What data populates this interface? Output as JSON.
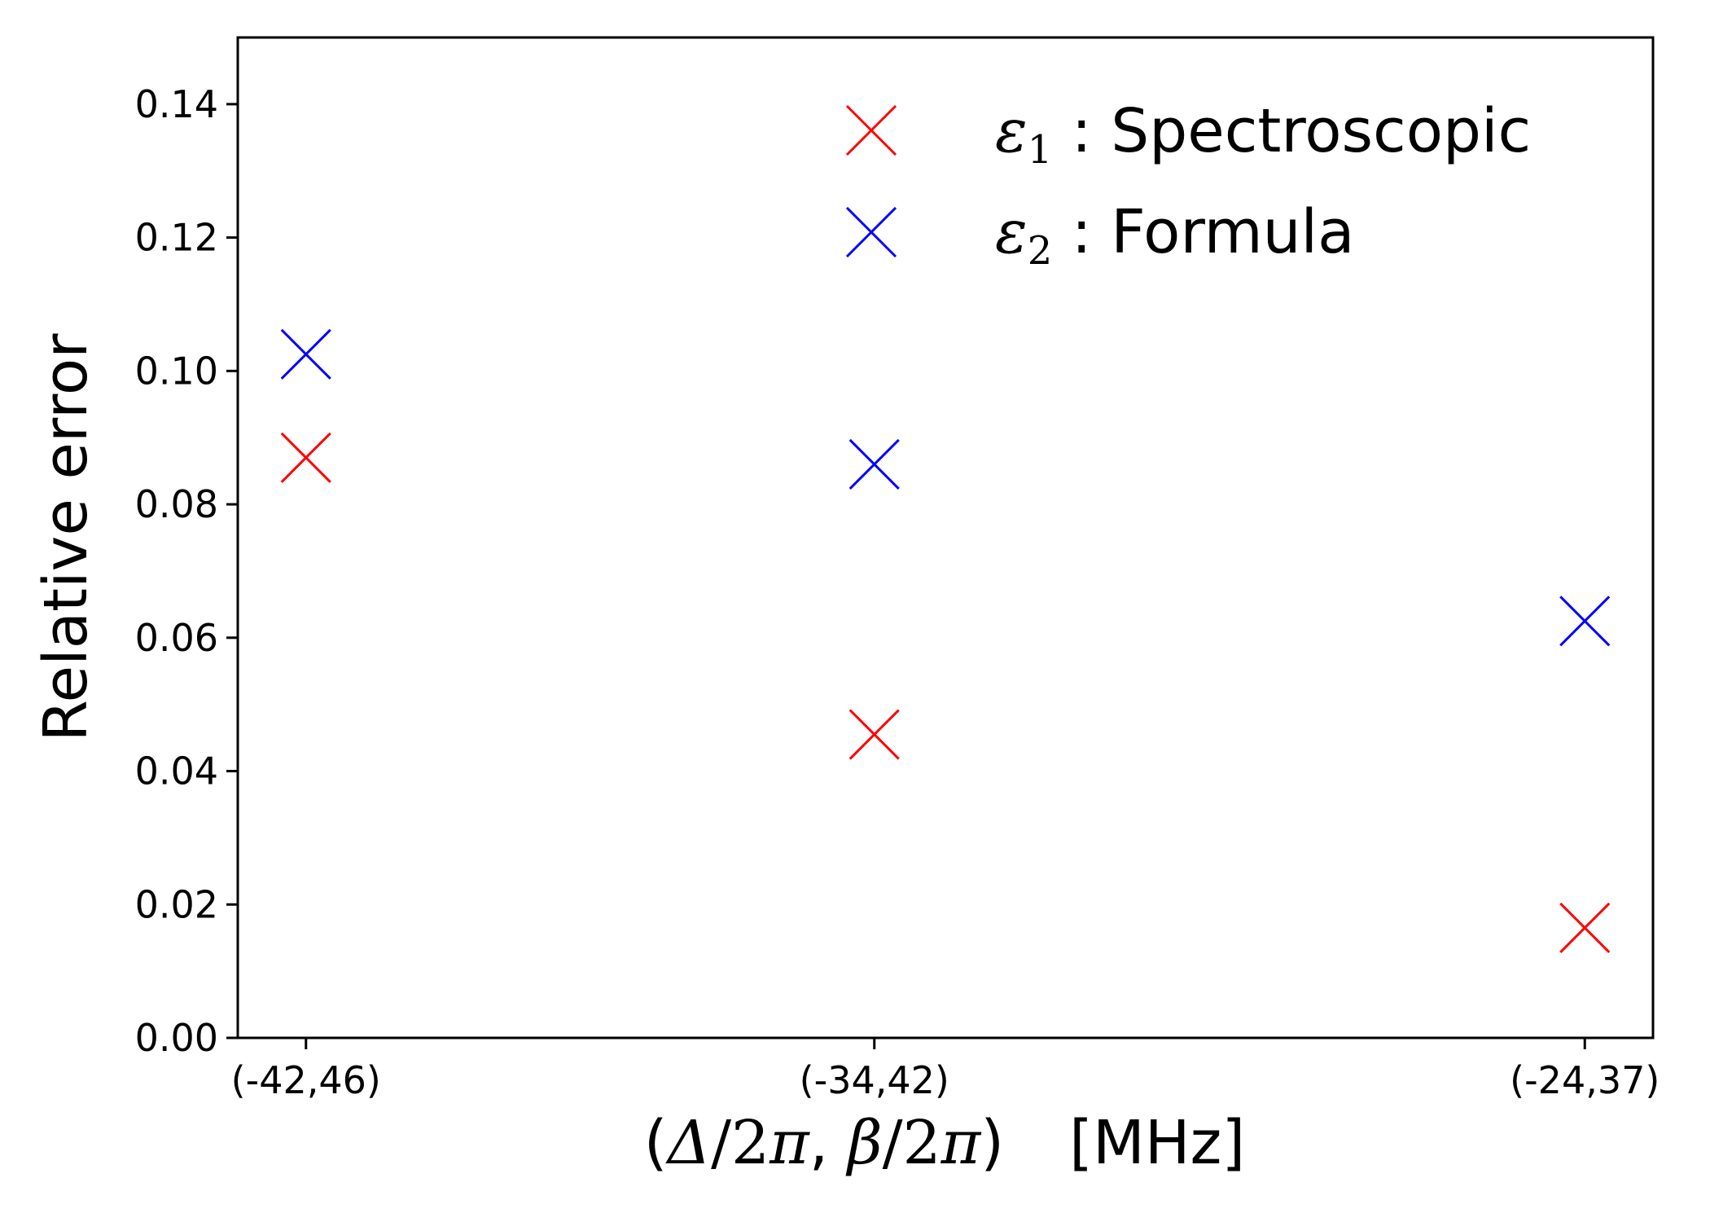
{
  "chart_data": {
    "type": "scatter",
    "title": "",
    "xlabel": {
      "open": "(",
      "delta": "Δ",
      "frac1": "/2",
      "pi1": "π",
      "sep": ", ",
      "beta": "β",
      "frac2": "/2",
      "pi2": "π",
      "close": ")",
      "unit": "[MHz]"
    },
    "ylabel": "Relative error",
    "categories": [
      "(-42,46)",
      "(-34,42)",
      "(-24,37)"
    ],
    "x_positions": [
      0,
      1,
      2.25
    ],
    "xlim": [
      -0.12,
      2.37
    ],
    "ylim": [
      0.0,
      0.15
    ],
    "yticks": [
      "0.00",
      "0.02",
      "0.04",
      "0.06",
      "0.08",
      "0.10",
      "0.12",
      "0.14"
    ],
    "ytick_values": [
      0.0,
      0.02,
      0.04,
      0.06,
      0.08,
      0.1,
      0.12,
      0.14
    ],
    "grid": false,
    "legend_position": "top-right",
    "series": [
      {
        "symbol": "ε",
        "subscript": "1",
        "label": " : Spectroscopic",
        "color": "#ff0000",
        "marker": "x",
        "values": [
          0.087,
          0.0455,
          0.0165
        ]
      },
      {
        "symbol": "ε",
        "subscript": "2",
        "label": " : Formula",
        "color": "#0000ff",
        "marker": "x",
        "values": [
          0.1025,
          0.086,
          0.0625
        ]
      }
    ]
  }
}
